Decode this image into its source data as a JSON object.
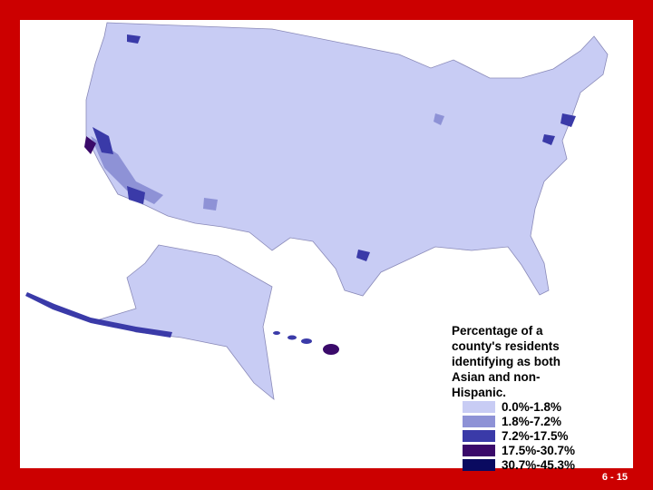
{
  "legend": {
    "title": "Percentage of a county's residents identifying as both Asian and non-Hispanic.",
    "items": [
      {
        "label": "0.0%-1.8%",
        "color": "#c8ccf4"
      },
      {
        "label": "1.8%-7.2%",
        "color": "#8e92d6"
      },
      {
        "label": "7.2%-17.5%",
        "color": "#3a3aa8"
      },
      {
        "label": "17.5%-30.7%",
        "color": "#3a0a6a"
      },
      {
        "label": "30.7%-45.3%",
        "color": "#0a0a60"
      }
    ]
  },
  "slide_number": "6 - 15"
}
